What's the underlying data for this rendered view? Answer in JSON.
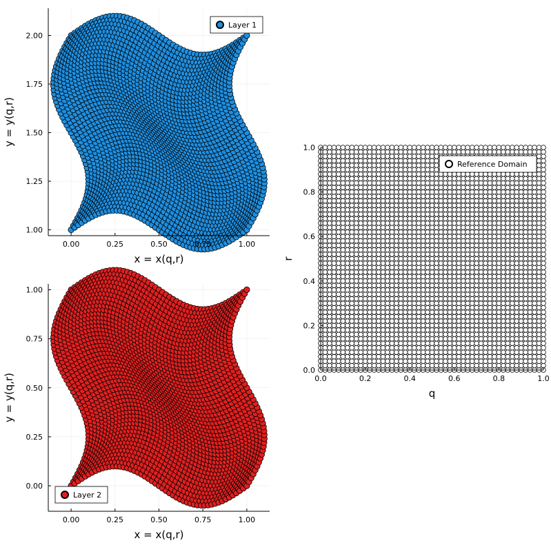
{
  "chart_data": [
    {
      "type": "scatter",
      "panel": "top-left",
      "xlabel": "x = x(q,r)",
      "ylabel": "y = y(q,r)",
      "xlim": [
        -0.13,
        1.13
      ],
      "ylim": [
        0.97,
        2.14
      ],
      "xticks": [
        0.0,
        0.25,
        0.5,
        0.75,
        1.0
      ],
      "xtick_labels": [
        "0.00",
        "0.25",
        "0.50",
        "0.75",
        "1.00"
      ],
      "yticks": [
        1.0,
        1.25,
        1.5,
        1.75,
        2.0
      ],
      "ytick_labels": [
        "1.00",
        "1.25",
        "1.50",
        "1.75",
        "2.00"
      ],
      "grid": true,
      "legend_position": "top-right",
      "series": [
        {
          "name": "Layer 1",
          "color": "#1f8fe0",
          "marker_edge": "#000000",
          "grid_points": 51,
          "mapping": "x = q + 0.1*sin(2*pi*r), y = 1 + r + 0.1*sin(2*pi*q)",
          "corners": [
            [
              0.0,
              1.0
            ],
            [
              1.0,
              1.0
            ],
            [
              1.0,
              2.0
            ],
            [
              0.0,
              2.0
            ]
          ]
        }
      ]
    },
    {
      "type": "scatter",
      "panel": "bottom-left",
      "xlabel": "x = x(q,r)",
      "ylabel": "y = y(q,r)",
      "xlim": [
        -0.13,
        1.13
      ],
      "ylim": [
        -0.13,
        1.03
      ],
      "xticks": [
        0.0,
        0.25,
        0.5,
        0.75,
        1.0
      ],
      "xtick_labels": [
        "0.00",
        "0.25",
        "0.50",
        "0.75",
        "1.00"
      ],
      "yticks": [
        0.0,
        0.25,
        0.5,
        0.75,
        1.0
      ],
      "ytick_labels": [
        "0.00",
        "0.25",
        "0.50",
        "0.75",
        "1.00"
      ],
      "grid": true,
      "legend_position": "bottom-left",
      "series": [
        {
          "name": "Layer 2",
          "color": "#e02020",
          "marker_edge": "#000000",
          "grid_points": 51,
          "mapping": "x = q + 0.1*sin(2*pi*r), y = r + 0.1*sin(2*pi*q)",
          "corners": [
            [
              0.0,
              0.0
            ],
            [
              1.0,
              0.0
            ],
            [
              1.0,
              1.0
            ],
            [
              0.0,
              1.0
            ]
          ]
        }
      ]
    },
    {
      "type": "scatter",
      "panel": "right",
      "xlabel": "q",
      "ylabel": "r",
      "xlim": [
        0.0,
        1.0
      ],
      "ylim": [
        0.0,
        1.0
      ],
      "xticks": [
        0.0,
        0.2,
        0.4,
        0.6,
        0.8,
        1.0
      ],
      "xtick_labels": [
        "0.0",
        "0.2",
        "0.4",
        "0.6",
        "0.8",
        "1.0"
      ],
      "yticks": [
        0.0,
        0.2,
        0.4,
        0.6,
        0.8,
        1.0
      ],
      "ytick_labels": [
        "0.0",
        "0.2",
        "0.4",
        "0.6",
        "0.8",
        "1.0"
      ],
      "grid": true,
      "legend_position": "top-right",
      "series": [
        {
          "name": "Reference Domain",
          "color": "#ffffff",
          "marker_edge": "#000000",
          "grid_points": 51,
          "mapping": "x = q, y = r"
        }
      ]
    }
  ]
}
